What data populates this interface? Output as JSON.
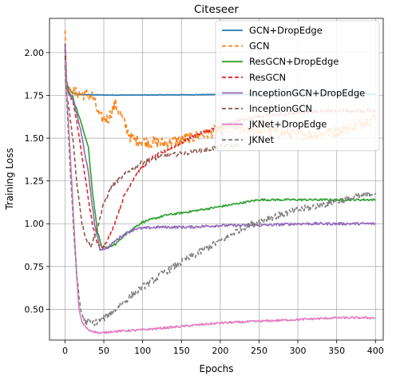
{
  "chart_data": {
    "type": "line",
    "title": "Citeseer",
    "xlabel": "Epochs",
    "ylabel": "Training Loss",
    "xlim": [
      -20,
      410
    ],
    "ylim": [
      0.32,
      2.2
    ],
    "xticks": [
      0,
      50,
      100,
      150,
      200,
      250,
      300,
      350,
      400
    ],
    "yticks": [
      0.5,
      0.75,
      1.0,
      1.25,
      1.5,
      1.75,
      2.0
    ],
    "xtick_labels": [
      "0",
      "50",
      "100",
      "150",
      "200",
      "250",
      "300",
      "350",
      "400"
    ],
    "ytick_labels": [
      "0.50",
      "0.75",
      "1.00",
      "1.25",
      "1.50",
      "1.75",
      "2.00"
    ],
    "grid": true,
    "legend_position": "top-right",
    "series": [
      {
        "name": "GCN+DropEdge",
        "color": "#1f77b4",
        "style": "solid",
        "noise": 0.002,
        "points": [
          [
            0,
            1.93
          ],
          [
            2,
            1.82
          ],
          [
            5,
            1.79
          ],
          [
            10,
            1.76
          ],
          [
            20,
            1.755
          ],
          [
            50,
            1.752
          ],
          [
            100,
            1.752
          ],
          [
            200,
            1.755
          ],
          [
            300,
            1.758
          ],
          [
            400,
            1.758
          ]
        ]
      },
      {
        "name": "GCN",
        "color": "#ff7f0e",
        "style": "dashed",
        "noise": 0.035,
        "points": [
          [
            0,
            2.13
          ],
          [
            2,
            1.85
          ],
          [
            5,
            1.77
          ],
          [
            20,
            1.76
          ],
          [
            35,
            1.75
          ],
          [
            45,
            1.62
          ],
          [
            55,
            1.61
          ],
          [
            65,
            1.7
          ],
          [
            75,
            1.6
          ],
          [
            85,
            1.5
          ],
          [
            100,
            1.48
          ],
          [
            130,
            1.47
          ],
          [
            160,
            1.5
          ],
          [
            200,
            1.55
          ],
          [
            240,
            1.55
          ],
          [
            280,
            1.53
          ],
          [
            320,
            1.52
          ],
          [
            360,
            1.55
          ],
          [
            400,
            1.62
          ]
        ]
      },
      {
        "name": "ResGCN+DropEdge",
        "color": "#2ca02c",
        "style": "solid",
        "noise": 0.006,
        "points": [
          [
            0,
            2.05
          ],
          [
            2,
            1.82
          ],
          [
            5,
            1.77
          ],
          [
            10,
            1.74
          ],
          [
            20,
            1.6
          ],
          [
            30,
            1.45
          ],
          [
            35,
            1.2
          ],
          [
            42,
            0.95
          ],
          [
            48,
            0.86
          ],
          [
            55,
            0.86
          ],
          [
            65,
            0.88
          ],
          [
            80,
            0.95
          ],
          [
            100,
            1.01
          ],
          [
            130,
            1.05
          ],
          [
            160,
            1.07
          ],
          [
            200,
            1.1
          ],
          [
            250,
            1.14
          ],
          [
            300,
            1.14
          ],
          [
            350,
            1.14
          ],
          [
            400,
            1.14
          ]
        ]
      },
      {
        "name": "ResGCN",
        "color": "#d62728",
        "style": "dashed",
        "noise": 0.01,
        "points": [
          [
            0,
            2.02
          ],
          [
            2,
            1.8
          ],
          [
            5,
            1.76
          ],
          [
            10,
            1.72
          ],
          [
            15,
            1.6
          ],
          [
            25,
            1.3
          ],
          [
            35,
            1.0
          ],
          [
            42,
            0.87
          ],
          [
            50,
            0.87
          ],
          [
            60,
            0.95
          ],
          [
            75,
            1.15
          ],
          [
            90,
            1.28
          ],
          [
            110,
            1.38
          ],
          [
            140,
            1.45
          ],
          [
            170,
            1.52
          ],
          [
            200,
            1.57
          ],
          [
            230,
            1.61
          ],
          [
            260,
            1.63
          ],
          [
            300,
            1.65
          ],
          [
            350,
            1.66
          ],
          [
            400,
            1.66
          ]
        ]
      },
      {
        "name": "InceptionGCN+DropEdge",
        "color": "#9467bd",
        "style": "solid",
        "noise": 0.008,
        "points": [
          [
            0,
            2.05
          ],
          [
            2,
            1.8
          ],
          [
            5,
            1.75
          ],
          [
            10,
            1.73
          ],
          [
            20,
            1.55
          ],
          [
            30,
            1.3
          ],
          [
            38,
            1.0
          ],
          [
            45,
            0.85
          ],
          [
            55,
            0.86
          ],
          [
            70,
            0.92
          ],
          [
            90,
            0.97
          ],
          [
            120,
            0.98
          ],
          [
            160,
            0.98
          ],
          [
            200,
            0.99
          ],
          [
            250,
            0.99
          ],
          [
            300,
            1.0
          ],
          [
            350,
            1.0
          ],
          [
            400,
            1.0
          ]
        ]
      },
      {
        "name": "InceptionGCN",
        "color": "#8c564b",
        "style": "dashed",
        "noise": 0.012,
        "points": [
          [
            0,
            1.98
          ],
          [
            2,
            1.75
          ],
          [
            5,
            1.68
          ],
          [
            10,
            1.5
          ],
          [
            15,
            1.25
          ],
          [
            22,
            1.0
          ],
          [
            28,
            0.9
          ],
          [
            33,
            0.87
          ],
          [
            40,
            0.95
          ],
          [
            50,
            1.12
          ],
          [
            60,
            1.22
          ],
          [
            80,
            1.3
          ],
          [
            100,
            1.36
          ],
          [
            130,
            1.4
          ],
          [
            150,
            1.41
          ],
          [
            180,
            1.43
          ],
          [
            200,
            1.45
          ],
          [
            225,
            1.46
          ]
        ]
      },
      {
        "name": "JKNet+DropEdge",
        "color": "#e377c2",
        "style": "solid",
        "noise": 0.006,
        "points": [
          [
            0,
            1.95
          ],
          [
            3,
            1.7
          ],
          [
            8,
            1.3
          ],
          [
            12,
            0.95
          ],
          [
            15,
            0.7
          ],
          [
            18,
            0.5
          ],
          [
            22,
            0.42
          ],
          [
            30,
            0.38
          ],
          [
            45,
            0.36
          ],
          [
            60,
            0.37
          ],
          [
            100,
            0.38
          ],
          [
            150,
            0.4
          ],
          [
            200,
            0.42
          ],
          [
            250,
            0.43
          ],
          [
            300,
            0.44
          ],
          [
            350,
            0.45
          ],
          [
            400,
            0.45
          ]
        ]
      },
      {
        "name": "JKNet",
        "color": "#7f7f7f",
        "style": "dashed",
        "noise": 0.02,
        "points": [
          [
            0,
            1.92
          ],
          [
            3,
            1.65
          ],
          [
            8,
            1.2
          ],
          [
            12,
            0.9
          ],
          [
            16,
            0.65
          ],
          [
            20,
            0.5
          ],
          [
            25,
            0.43
          ],
          [
            35,
            0.42
          ],
          [
            45,
            0.43
          ],
          [
            60,
            0.48
          ],
          [
            80,
            0.56
          ],
          [
            100,
            0.63
          ],
          [
            130,
            0.72
          ],
          [
            160,
            0.8
          ],
          [
            200,
            0.9
          ],
          [
            230,
            0.98
          ],
          [
            260,
            1.03
          ],
          [
            300,
            1.08
          ],
          [
            340,
            1.12
          ],
          [
            370,
            1.15
          ],
          [
            400,
            1.18
          ]
        ]
      }
    ]
  }
}
